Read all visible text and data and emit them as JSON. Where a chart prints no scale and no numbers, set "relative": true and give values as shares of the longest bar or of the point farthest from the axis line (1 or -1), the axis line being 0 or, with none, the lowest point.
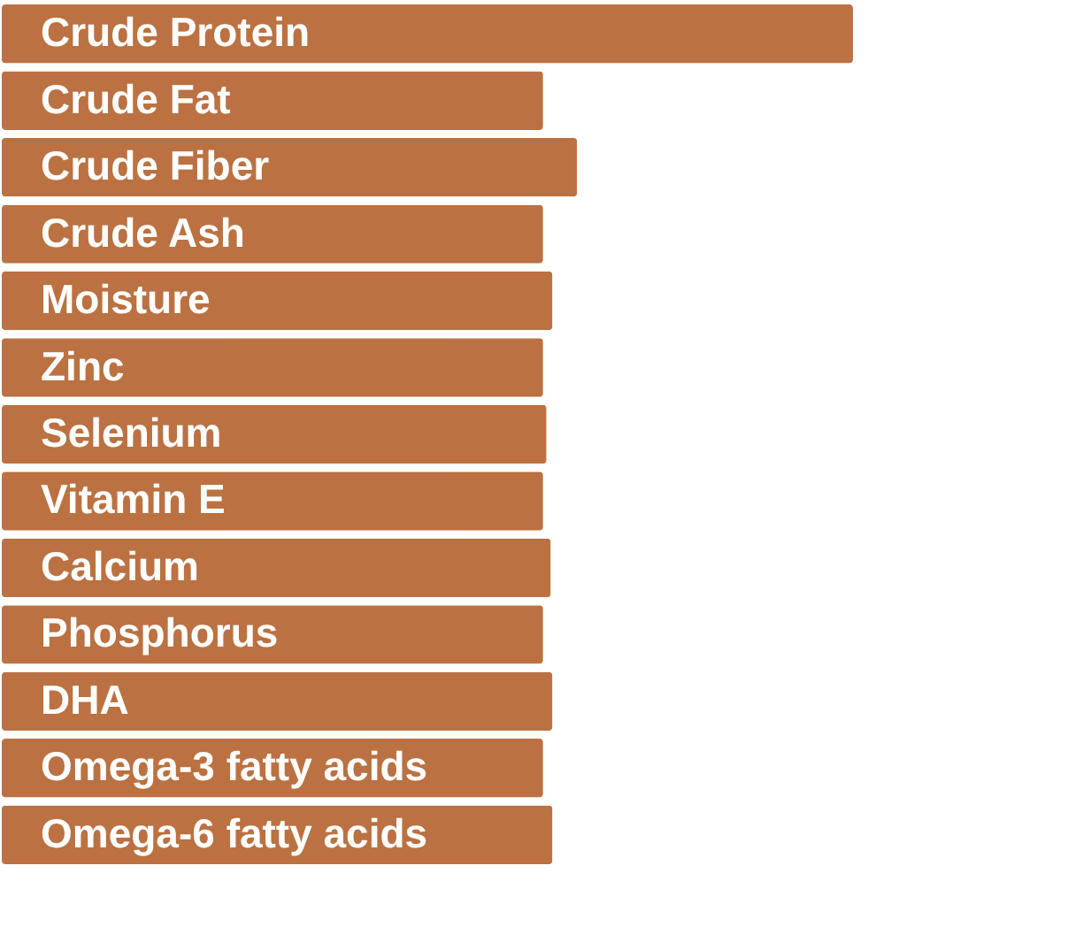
{
  "chart_data": {
    "type": "bar",
    "orientation": "horizontal",
    "relative": true,
    "tick_labels": false,
    "categories": [
      "Crude Protein",
      "Crude Fat",
      "Crude Fiber",
      "Crude Ash",
      "Moisture",
      "Zinc",
      "Selenium",
      "Vitamin E",
      "Calcium",
      "Phosphorus",
      "DHA",
      "Omega-3 fatty acids",
      "Omega-6 fatty acids"
    ],
    "values": [
      1,
      0.636,
      0.676,
      0.636,
      0.647,
      0.636,
      0.64,
      0.636,
      0.645,
      0.636,
      0.647,
      0.636,
      0.647
    ],
    "color": "#bb7141"
  }
}
